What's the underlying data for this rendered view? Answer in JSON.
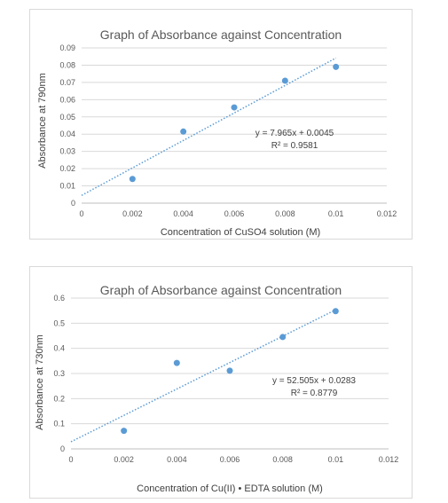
{
  "chart_data": [
    {
      "type": "scatter",
      "title": "Graph of Absorbance against Concentration",
      "xlabel": "Concentration of CuSO4 solution (M)",
      "ylabel": "Absorbance  at 790nm",
      "xlim": [
        0,
        0.012
      ],
      "ylim": [
        0,
        0.09
      ],
      "x_ticks": [
        "0",
        "0.002",
        "0.004",
        "0.006",
        "0.008",
        "0.01",
        "0.012"
      ],
      "y_ticks": [
        "0",
        "0.01",
        "0.02",
        "0.03",
        "0.04",
        "0.05",
        "0.06",
        "0.07",
        "0.08",
        "0.09"
      ],
      "grid": "horizontal",
      "series": [
        {
          "x": [
            0.002,
            0.004,
            0.006,
            0.008,
            0.01
          ],
          "y": [
            0.014,
            0.0415,
            0.0555,
            0.071,
            0.079
          ],
          "color": "#5b9bd5"
        }
      ],
      "trendline": {
        "slope": 7.965,
        "intercept": 0.0045,
        "x_range": [
          0,
          0.01
        ],
        "style": "dotted",
        "color": "#5b9bd5"
      },
      "equation": "y = 7.965x + 0.0045",
      "r_squared": "R² = 0.9581"
    },
    {
      "type": "scatter",
      "title": "Graph of Absorbance against Concentration",
      "xlabel": "Concentration of Cu(II) • EDTA solution (M)",
      "ylabel": "Absorbance  at 730nm",
      "xlim": [
        0,
        0.012
      ],
      "ylim": [
        0,
        0.6
      ],
      "x_ticks": [
        "0",
        "0.002",
        "0.004",
        "0.006",
        "0.008",
        "0.01",
        "0.012"
      ],
      "y_ticks": [
        "0",
        "0.1",
        "0.2",
        "0.3",
        "0.4",
        "0.5",
        "0.6"
      ],
      "grid": "horizontal",
      "series": [
        {
          "x": [
            0.002,
            0.004,
            0.006,
            0.008,
            0.01
          ],
          "y": [
            0.072,
            0.342,
            0.311,
            0.445,
            0.548
          ],
          "color": "#5b9bd5"
        }
      ],
      "trendline": {
        "slope": 52.505,
        "intercept": 0.0283,
        "x_range": [
          0,
          0.01
        ],
        "style": "dotted",
        "color": "#5b9bd5"
      },
      "equation": "y = 52.505x + 0.0283",
      "r_squared": "R² = 0.8779"
    }
  ]
}
